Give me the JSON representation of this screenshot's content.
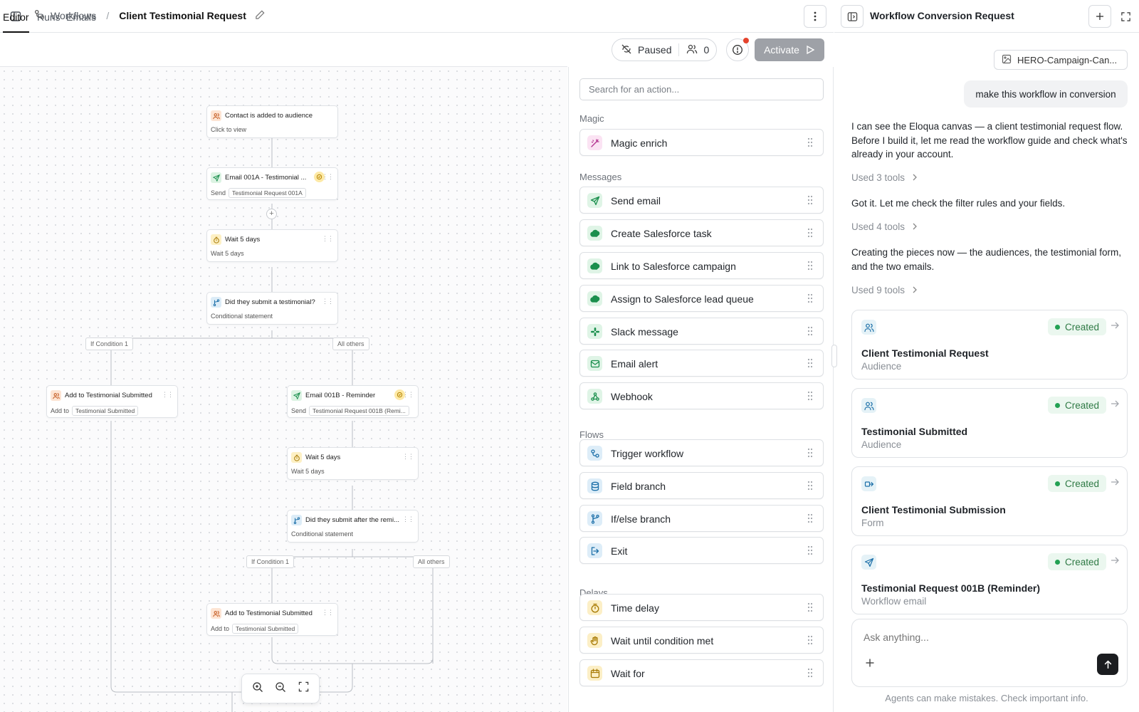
{
  "header": {
    "breadcrumb_root": "Workflows",
    "separator": "/",
    "workflow_title": "Client Testimonial Request"
  },
  "tabs": [
    "Editor",
    "Runs",
    "Emails"
  ],
  "status": {
    "paused_label": "Paused",
    "audience_count": "0",
    "activate_label": "Activate"
  },
  "canvas": {
    "nodes": [
      {
        "title": "Contact is added to audience",
        "sub": "Click to view",
        "chip": ""
      },
      {
        "title": "Email 001A - Testimonial ...",
        "sub": "Send",
        "chip": "Testimonial Request 001A"
      },
      {
        "title": "Wait 5 days",
        "sub": "Wait 5 days",
        "chip": ""
      },
      {
        "title": "Did they submit a testimonial?",
        "sub": "Conditional statement",
        "chip": ""
      },
      {
        "title": "Add to Testimonial Submitted",
        "sub": "Add to",
        "chip": "Testimonial Submitted"
      },
      {
        "title": "Email 001B - Reminder",
        "sub": "Send",
        "chip": "Testimonial Request 001B (Remi..."
      },
      {
        "title": "Wait 5 days",
        "sub": "Wait 5 days",
        "chip": ""
      },
      {
        "title": "Did they submit after the remi...",
        "sub": "Conditional statement",
        "chip": ""
      },
      {
        "title": "Add to Testimonial Submitted",
        "sub": "Add to",
        "chip": "Testimonial Submitted"
      }
    ],
    "branch_labels": [
      "If Condition 1",
      "All others",
      "If Condition 1",
      "All others"
    ]
  },
  "actions": {
    "search_placeholder": "Search for an action...",
    "sections": {
      "magic": "Magic",
      "messages": "Messages",
      "flows": "Flows",
      "delays": "Delays"
    },
    "items": [
      {
        "label": "Magic enrich",
        "icon": "magic-wand-icon",
        "color": "#b3338f"
      },
      {
        "label": "Send email",
        "icon": "send-icon",
        "color": "#1a8f4d"
      },
      {
        "label": "Create Salesforce task",
        "icon": "salesforce-cloud-icon",
        "color": "#1a8f4d"
      },
      {
        "label": "Link to Salesforce campaign",
        "icon": "salesforce-cloud-icon",
        "color": "#1a8f4d"
      },
      {
        "label": "Assign to Salesforce lead queue",
        "icon": "salesforce-cloud-icon",
        "color": "#1a8f4d"
      },
      {
        "label": "Slack message",
        "icon": "slack-icon",
        "color": "#1a8f4d"
      },
      {
        "label": "Email alert",
        "icon": "mail-icon",
        "color": "#1a8f4d"
      },
      {
        "label": "Webhook",
        "icon": "webhook-icon",
        "color": "#1a8f4d"
      },
      {
        "label": "Trigger workflow",
        "icon": "workflow-icon",
        "color": "#1c6fa8"
      },
      {
        "label": "Field branch",
        "icon": "database-icon",
        "color": "#1c6fa8"
      },
      {
        "label": "If/else branch",
        "icon": "branch-icon",
        "color": "#1c6fa8"
      },
      {
        "label": "Exit",
        "icon": "exit-icon",
        "color": "#1c6fa8"
      },
      {
        "label": "Time delay",
        "icon": "timer-icon",
        "color": "#a87b06"
      },
      {
        "label": "Wait until condition met",
        "icon": "hand-icon",
        "color": "#a87b06"
      },
      {
        "label": "Wait for",
        "icon": "calendar-icon",
        "color": "#a87b06"
      }
    ]
  },
  "chat": {
    "title": "Workflow Conversion Request",
    "attachment": "HERO-Campaign-Can...",
    "user_message": "make this workflow in conversion",
    "messages": [
      "I can see the Eloqua canvas — a client testimonial request flow. Before I build it, let me read the workflow guide and check what's already in your account.",
      "Got it. Let me check the filter rules and your fields.",
      "Creating the pieces now — the audiences, the testimonial form, and the two emails."
    ],
    "tools_used": [
      "Used 3 tools",
      "Used 4 tools",
      "Used 9 tools"
    ],
    "cards": [
      {
        "status": "Created",
        "name": "Client Testimonial Request",
        "type": "Audience",
        "icon": "audience-icon"
      },
      {
        "status": "Created",
        "name": "Testimonial Submitted",
        "type": "Audience",
        "icon": "audience-icon"
      },
      {
        "status": "Created",
        "name": "Client Testimonial Submission",
        "type": "Form",
        "icon": "form-icon"
      },
      {
        "status": "Created",
        "name": "Testimonial Request 001B (Reminder)",
        "type": "Workflow email",
        "icon": "send-icon"
      }
    ],
    "input_placeholder": "Ask anything...",
    "disclaimer": "Agents can make mistakes. Check important info."
  }
}
